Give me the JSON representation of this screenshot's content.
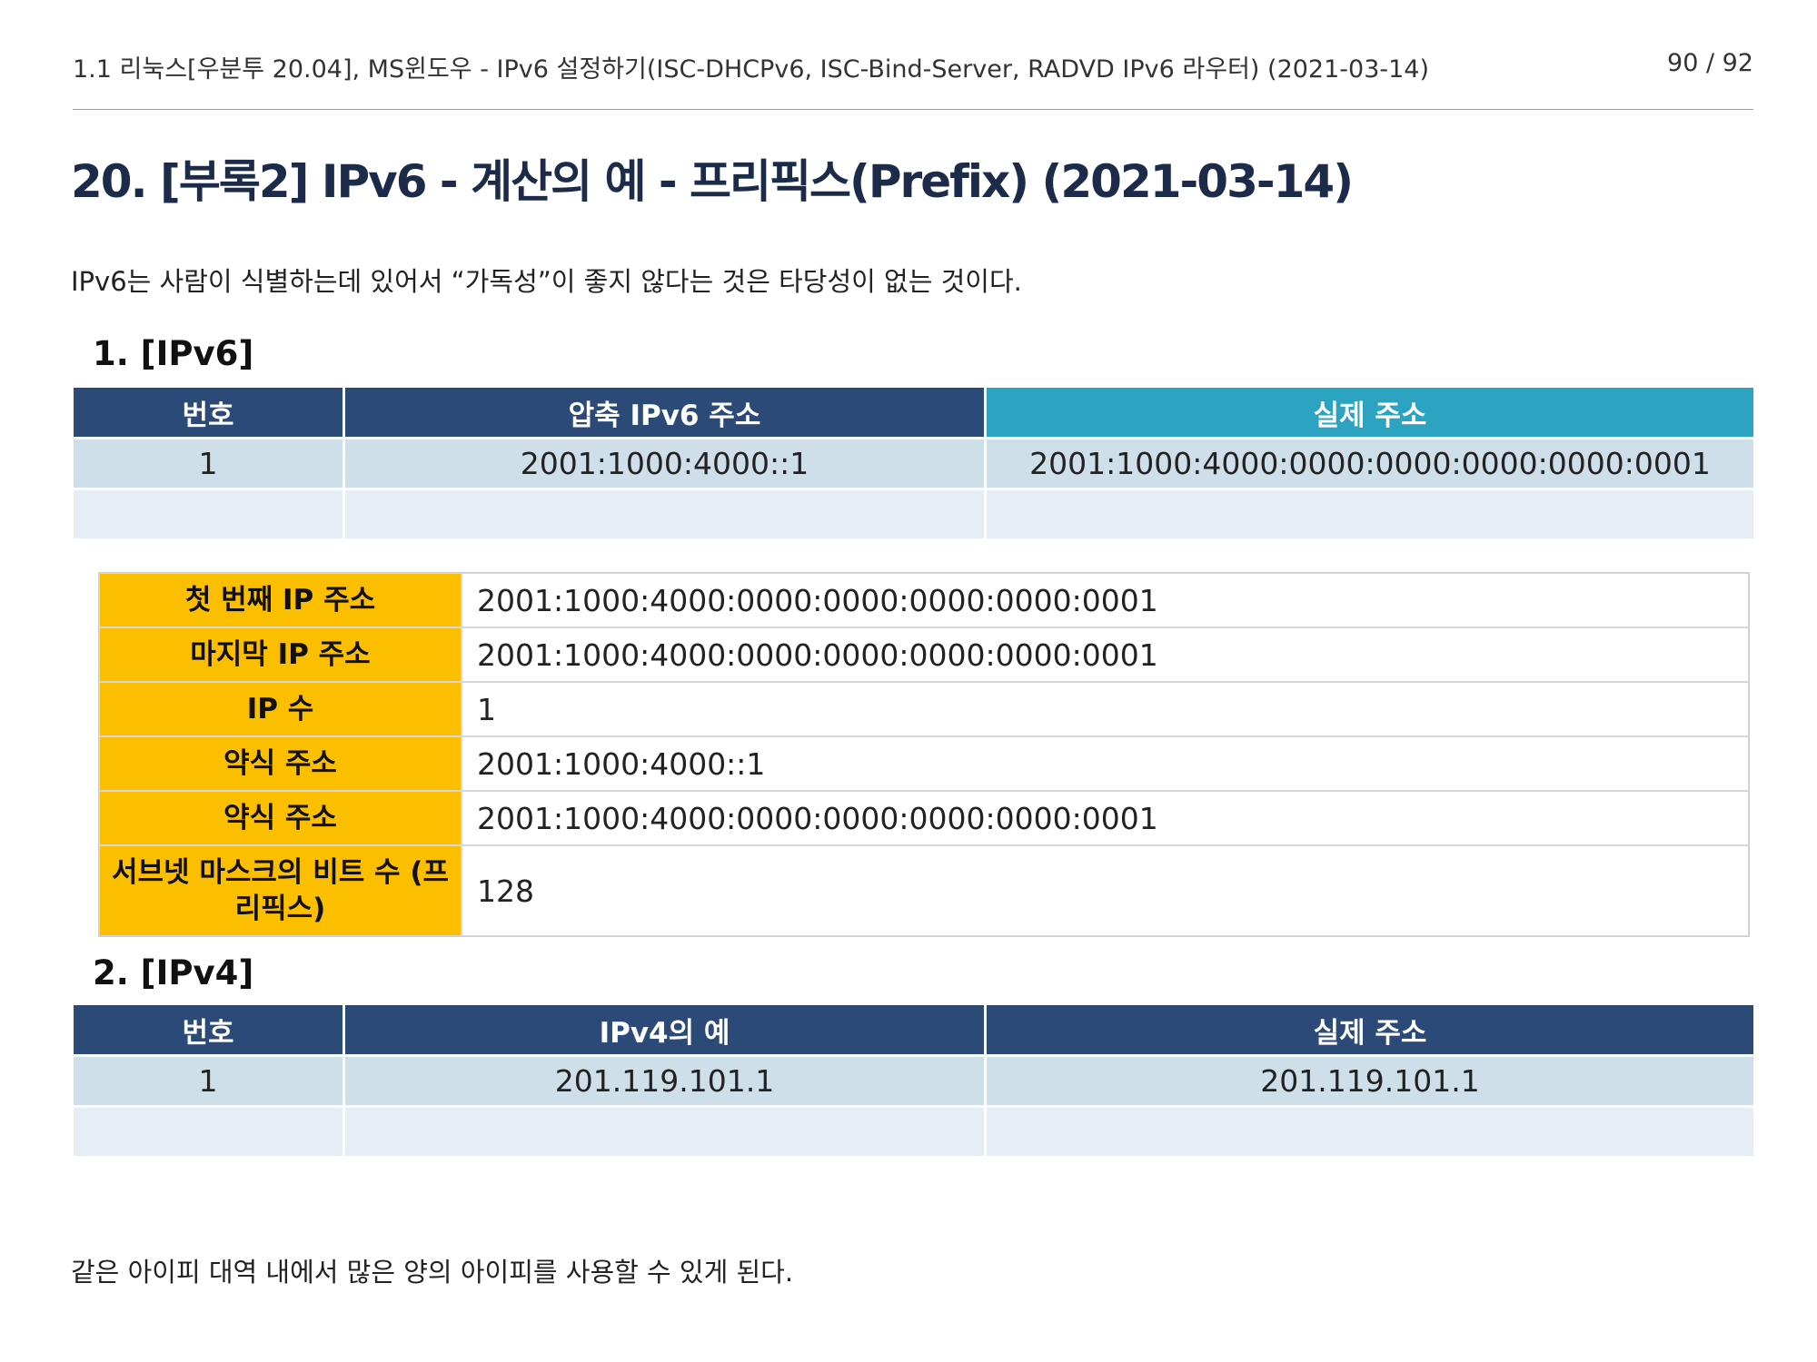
{
  "header": {
    "title": "1.1 리눅스[우분투 20.04], MS윈도우 - IPv6 설정하기(ISC-DHCPv6, ISC-Bind-Server, RADVD IPv6 라우터) (2021-03-14)",
    "page": "90 / 92"
  },
  "heading": "20. [부록2] IPv6 - 계산의 예 - 프리픽스(Prefix) (2021-03-14)",
  "intro": "IPv6는 사람이 식별하는데 있어서 “가독성”이 좋지 않다는 것은 타당성이 없는 것이다.",
  "section1": {
    "title": "1. [IPv6]",
    "headers": [
      "번호",
      "압축 IPv6 주소",
      "실제 주소"
    ],
    "rows": [
      [
        "1",
        "2001:1000:4000::1",
        "2001:1000:4000:0000:0000:0000:0000:0001"
      ],
      [
        "",
        "",
        ""
      ]
    ],
    "header_colors": [
      "#2b4a78",
      "#2b4a78",
      "#2da3c2"
    ]
  },
  "info": {
    "rows": [
      {
        "label": "첫 번째 IP 주소",
        "value": "2001:1000:4000:0000:0000:0000:0000:0001"
      },
      {
        "label": "마지막 IP 주소",
        "value": "2001:1000:4000:0000:0000:0000:0000:0001"
      },
      {
        "label": "IP 수",
        "value": "1"
      },
      {
        "label": "약식 주소",
        "value": "2001:1000:4000::1"
      },
      {
        "label": "약식 주소",
        "value": "2001:1000:4000:0000:0000:0000:0000:0001"
      },
      {
        "label": "서브넷 마스크의 비트 수 (프리픽스)",
        "value": "128"
      }
    ],
    "label_color": "#fbbf00"
  },
  "section2": {
    "title": "2. [IPv4]",
    "headers": [
      "번호",
      "IPv4의 예",
      "실제 주소"
    ],
    "rows": [
      [
        "1",
        "201.119.101.1",
        "201.119.101.1"
      ],
      [
        "",
        "",
        ""
      ]
    ]
  },
  "outro": "같은 아이피 대역 내에서 많은 양의 아이피를 사용할 수 있게 된다."
}
